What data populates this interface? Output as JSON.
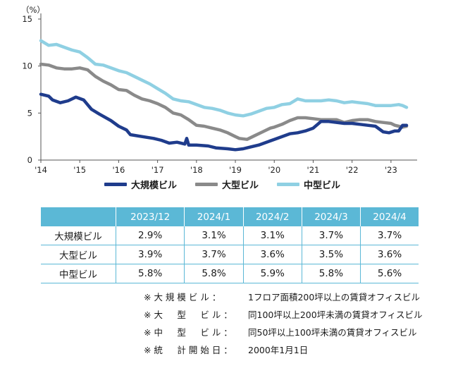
{
  "chart_data": {
    "type": "line",
    "y_unit_label": "（%）",
    "ylim": [
      0,
      15
    ],
    "yticks": [
      0,
      5,
      10,
      15
    ],
    "xlim": [
      2014,
      2023.6
    ],
    "xticks": [
      {
        "v": 2014,
        "label": "'14"
      },
      {
        "v": 2015,
        "label": "'15"
      },
      {
        "v": 2016,
        "label": "'16"
      },
      {
        "v": 2017,
        "label": "'17"
      },
      {
        "v": 2018,
        "label": "'18"
      },
      {
        "v": 2019,
        "label": "'19"
      },
      {
        "v": 2020,
        "label": "'20"
      },
      {
        "v": 2021,
        "label": "'21"
      },
      {
        "v": 2022,
        "label": "'22"
      },
      {
        "v": 2023,
        "label": "'23"
      }
    ],
    "grid": false,
    "legend_position": "bottom",
    "series": [
      {
        "name": "大規模ビル",
        "color": "#1f3c8c",
        "points": [
          [
            2014.0,
            7.0
          ],
          [
            2014.2,
            6.8
          ],
          [
            2014.3,
            6.4
          ],
          [
            2014.5,
            6.1
          ],
          [
            2014.7,
            6.3
          ],
          [
            2014.9,
            6.7
          ],
          [
            2015.1,
            6.4
          ],
          [
            2015.3,
            5.4
          ],
          [
            2015.5,
            4.9
          ],
          [
            2015.8,
            4.2
          ],
          [
            2016.0,
            3.6
          ],
          [
            2016.2,
            3.2
          ],
          [
            2016.3,
            2.7
          ],
          [
            2016.6,
            2.5
          ],
          [
            2016.9,
            2.3
          ],
          [
            2017.1,
            2.1
          ],
          [
            2017.3,
            1.8
          ],
          [
            2017.5,
            1.9
          ],
          [
            2017.7,
            1.7
          ],
          [
            2017.75,
            2.3
          ],
          [
            2017.8,
            1.6
          ],
          [
            2018.0,
            1.6
          ],
          [
            2018.3,
            1.5
          ],
          [
            2018.5,
            1.3
          ],
          [
            2018.8,
            1.2
          ],
          [
            2019.0,
            1.1
          ],
          [
            2019.2,
            1.2
          ],
          [
            2019.4,
            1.4
          ],
          [
            2019.6,
            1.6
          ],
          [
            2019.8,
            1.9
          ],
          [
            2020.0,
            2.2
          ],
          [
            2020.2,
            2.5
          ],
          [
            2020.4,
            2.8
          ],
          [
            2020.6,
            2.9
          ],
          [
            2020.8,
            3.1
          ],
          [
            2021.0,
            3.4
          ],
          [
            2021.2,
            4.1
          ],
          [
            2021.4,
            4.1
          ],
          [
            2021.6,
            4.0
          ],
          [
            2021.8,
            3.9
          ],
          [
            2022.0,
            3.9
          ],
          [
            2022.2,
            3.8
          ],
          [
            2022.4,
            3.7
          ],
          [
            2022.6,
            3.6
          ],
          [
            2022.8,
            3.0
          ],
          [
            2022.95,
            2.9
          ],
          [
            2023.1,
            3.1
          ],
          [
            2023.2,
            3.1
          ],
          [
            2023.3,
            3.7
          ],
          [
            2023.4,
            3.7
          ]
        ]
      },
      {
        "name": "大型ビル",
        "color": "#8a8a8a",
        "points": [
          [
            2014.0,
            10.2
          ],
          [
            2014.2,
            10.1
          ],
          [
            2014.4,
            9.8
          ],
          [
            2014.6,
            9.7
          ],
          [
            2014.8,
            9.7
          ],
          [
            2015.0,
            9.8
          ],
          [
            2015.2,
            9.6
          ],
          [
            2015.4,
            8.9
          ],
          [
            2015.6,
            8.4
          ],
          [
            2015.8,
            8.0
          ],
          [
            2016.0,
            7.5
          ],
          [
            2016.2,
            7.4
          ],
          [
            2016.4,
            6.9
          ],
          [
            2016.6,
            6.5
          ],
          [
            2016.8,
            6.3
          ],
          [
            2017.0,
            6.0
          ],
          [
            2017.2,
            5.6
          ],
          [
            2017.4,
            5.0
          ],
          [
            2017.6,
            4.8
          ],
          [
            2017.8,
            4.3
          ],
          [
            2018.0,
            3.7
          ],
          [
            2018.2,
            3.6
          ],
          [
            2018.4,
            3.4
          ],
          [
            2018.6,
            3.2
          ],
          [
            2018.8,
            2.9
          ],
          [
            2019.0,
            2.5
          ],
          [
            2019.1,
            2.3
          ],
          [
            2019.3,
            2.2
          ],
          [
            2019.5,
            2.6
          ],
          [
            2019.7,
            3.0
          ],
          [
            2019.9,
            3.4
          ],
          [
            2020.0,
            3.5
          ],
          [
            2020.2,
            3.8
          ],
          [
            2020.4,
            4.2
          ],
          [
            2020.6,
            4.5
          ],
          [
            2020.8,
            4.5
          ],
          [
            2021.0,
            4.4
          ],
          [
            2021.2,
            4.3
          ],
          [
            2021.4,
            4.3
          ],
          [
            2021.6,
            4.3
          ],
          [
            2021.8,
            4.0
          ],
          [
            2022.0,
            4.2
          ],
          [
            2022.2,
            4.3
          ],
          [
            2022.4,
            4.3
          ],
          [
            2022.6,
            4.1
          ],
          [
            2022.8,
            4.0
          ],
          [
            2023.0,
            3.9
          ],
          [
            2023.1,
            3.7
          ],
          [
            2023.2,
            3.6
          ],
          [
            2023.3,
            3.5
          ],
          [
            2023.4,
            3.6
          ]
        ]
      },
      {
        "name": "中型ビル",
        "color": "#8fd0e3",
        "points": [
          [
            2014.0,
            12.7
          ],
          [
            2014.2,
            12.2
          ],
          [
            2014.4,
            12.3
          ],
          [
            2014.6,
            12.0
          ],
          [
            2014.8,
            11.7
          ],
          [
            2015.0,
            11.5
          ],
          [
            2015.2,
            10.9
          ],
          [
            2015.4,
            10.2
          ],
          [
            2015.6,
            10.1
          ],
          [
            2015.8,
            9.8
          ],
          [
            2016.0,
            9.5
          ],
          [
            2016.2,
            9.3
          ],
          [
            2016.4,
            8.9
          ],
          [
            2016.6,
            8.5
          ],
          [
            2016.8,
            8.1
          ],
          [
            2017.0,
            7.6
          ],
          [
            2017.2,
            7.1
          ],
          [
            2017.4,
            6.5
          ],
          [
            2017.6,
            6.3
          ],
          [
            2017.8,
            6.2
          ],
          [
            2018.0,
            5.9
          ],
          [
            2018.2,
            5.6
          ],
          [
            2018.4,
            5.5
          ],
          [
            2018.6,
            5.3
          ],
          [
            2018.8,
            5.0
          ],
          [
            2019.0,
            4.8
          ],
          [
            2019.2,
            4.7
          ],
          [
            2019.4,
            4.9
          ],
          [
            2019.6,
            5.2
          ],
          [
            2019.8,
            5.5
          ],
          [
            2020.0,
            5.6
          ],
          [
            2020.2,
            5.9
          ],
          [
            2020.4,
            6.0
          ],
          [
            2020.6,
            6.5
          ],
          [
            2020.8,
            6.3
          ],
          [
            2021.0,
            6.3
          ],
          [
            2021.2,
            6.3
          ],
          [
            2021.4,
            6.4
          ],
          [
            2021.6,
            6.3
          ],
          [
            2021.8,
            6.1
          ],
          [
            2022.0,
            6.2
          ],
          [
            2022.2,
            6.1
          ],
          [
            2022.4,
            6.0
          ],
          [
            2022.6,
            5.8
          ],
          [
            2022.8,
            5.8
          ],
          [
            2023.0,
            5.8
          ],
          [
            2023.2,
            5.9
          ],
          [
            2023.3,
            5.8
          ],
          [
            2023.4,
            5.6
          ]
        ]
      }
    ]
  },
  "table": {
    "headers": [
      "",
      "2023/12",
      "2024/1",
      "2024/2",
      "2024/3",
      "2024/4"
    ],
    "rows": [
      {
        "label": "大規模ビル",
        "values": [
          "2.9%",
          "3.1%",
          "3.1%",
          "3.7%",
          "3.7%"
        ]
      },
      {
        "label": "大型ビル",
        "values": [
          "3.9%",
          "3.7%",
          "3.6%",
          "3.5%",
          "3.6%"
        ]
      },
      {
        "label": "中型ビル",
        "values": [
          "5.8%",
          "5.8%",
          "5.9%",
          "5.8%",
          "5.6%"
        ]
      }
    ]
  },
  "notes": [
    {
      "label": "※ 大 規 模 ビ ル ：",
      "text": "1フロア面積200坪以上の賃貸オフィスビル"
    },
    {
      "label": "※ 大 　 型 　 ビ ル ：",
      "text": "同100坪以上200坪未満の賃貸オフィスビル"
    },
    {
      "label": "※ 中 　 型 　 ビ ル ：",
      "text": "同50坪以上100坪未満の賃貸オフィスビル"
    },
    {
      "label": "※ 統 　 計 開 始 日 ：",
      "text": "2000年1月1日"
    }
  ]
}
